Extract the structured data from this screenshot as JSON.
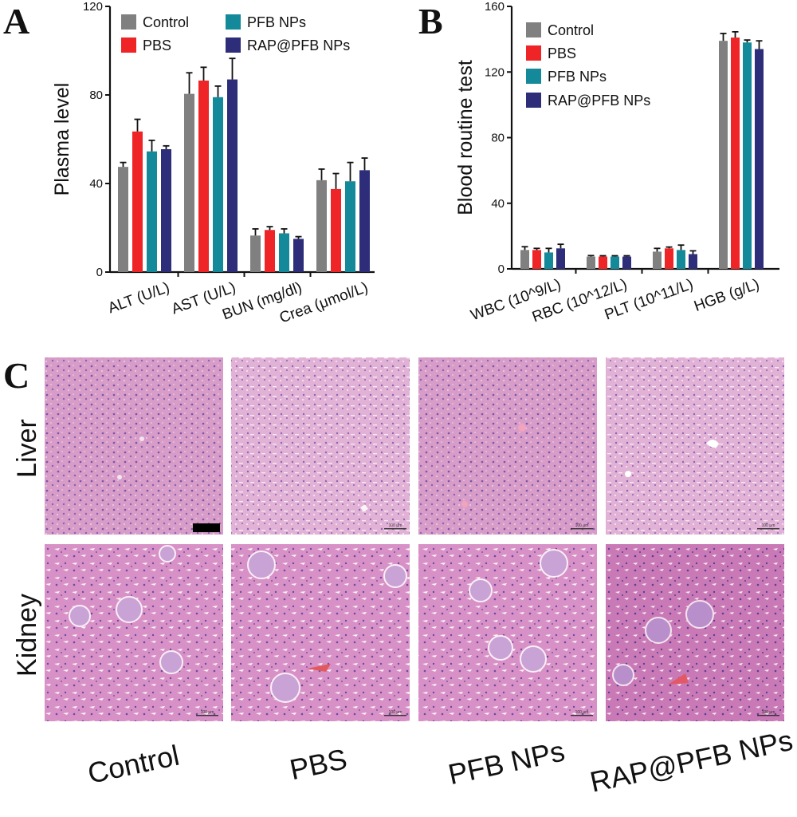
{
  "colors": {
    "Control": "#808080",
    "PBS": "#ee2427",
    "PFB NPs": "#13899a",
    "RAP@PFB NPs": "#2d2d7a"
  },
  "panels": {
    "a": "A",
    "b": "B",
    "c": "C"
  },
  "chart_data": [
    {
      "type": "bar",
      "ylabel": "Plasma level",
      "ylim": [
        0,
        120
      ],
      "yticks": [
        "0",
        "40",
        "80",
        "120"
      ],
      "legend": "top, two columns",
      "legend_order": [
        "Control",
        "PBS",
        "PFB NPs",
        "RAP@PFB NPs"
      ],
      "categories": [
        "ALT (U/L)",
        "AST (U/L)",
        "BUN (mg/dl)",
        "Crea (μmol/L)"
      ],
      "series": [
        {
          "name": "Control",
          "values": [
            47.5,
            80.5,
            16.5,
            41.5
          ],
          "errors": [
            2.0,
            9.5,
            3.0,
            5.0
          ]
        },
        {
          "name": "PBS",
          "values": [
            63.5,
            86.5,
            19.0,
            37.5
          ],
          "errors": [
            5.5,
            6.0,
            1.5,
            7.0
          ]
        },
        {
          "name": "PFB NPs",
          "values": [
            54.5,
            79.0,
            17.5,
            41.0
          ],
          "errors": [
            5.0,
            5.0,
            2.0,
            8.5
          ]
        },
        {
          "name": "RAP@PFB NPs",
          "values": [
            55.5,
            87.0,
            15.0,
            46.0
          ],
          "errors": [
            1.5,
            9.5,
            1.0,
            5.5
          ]
        }
      ]
    },
    {
      "type": "bar",
      "ylabel": "Blood routine test",
      "ylim": [
        0,
        160
      ],
      "yticks": [
        "0",
        "40",
        "80",
        "120",
        "160"
      ],
      "legend": "top-left, single column",
      "legend_order": [
        "Control",
        "PBS",
        "PFB NPs",
        "RAP@PFB NPs"
      ],
      "categories": [
        "WBC (10^9/L)",
        "RBC (10^12/L)",
        "PLT (10^11/L)",
        "HGB (g/L)"
      ],
      "series": [
        {
          "name": "Control",
          "values": [
            11.5,
            7.5,
            10.5,
            139.0
          ],
          "errors": [
            2.0,
            0.6,
            2.0,
            4.5
          ]
        },
        {
          "name": "PBS",
          "values": [
            11.5,
            7.5,
            12.5,
            141.0
          ],
          "errors": [
            1.0,
            0.5,
            0.8,
            3.5
          ]
        },
        {
          "name": "PFB NPs",
          "values": [
            10.0,
            7.5,
            11.5,
            138.0
          ],
          "errors": [
            2.5,
            0.5,
            3.0,
            1.5
          ]
        },
        {
          "name": "RAP@PFB NPs",
          "values": [
            12.5,
            7.5,
            9.0,
            134.0
          ],
          "errors": [
            2.5,
            0.5,
            2.0,
            5.0
          ]
        }
      ]
    }
  ],
  "histology": {
    "rows": [
      "Liver",
      "Kidney"
    ],
    "columns": [
      "Control",
      "PBS",
      "PFB NPs",
      "RAP@PFB NPs"
    ],
    "scale_text": "100 μm"
  }
}
